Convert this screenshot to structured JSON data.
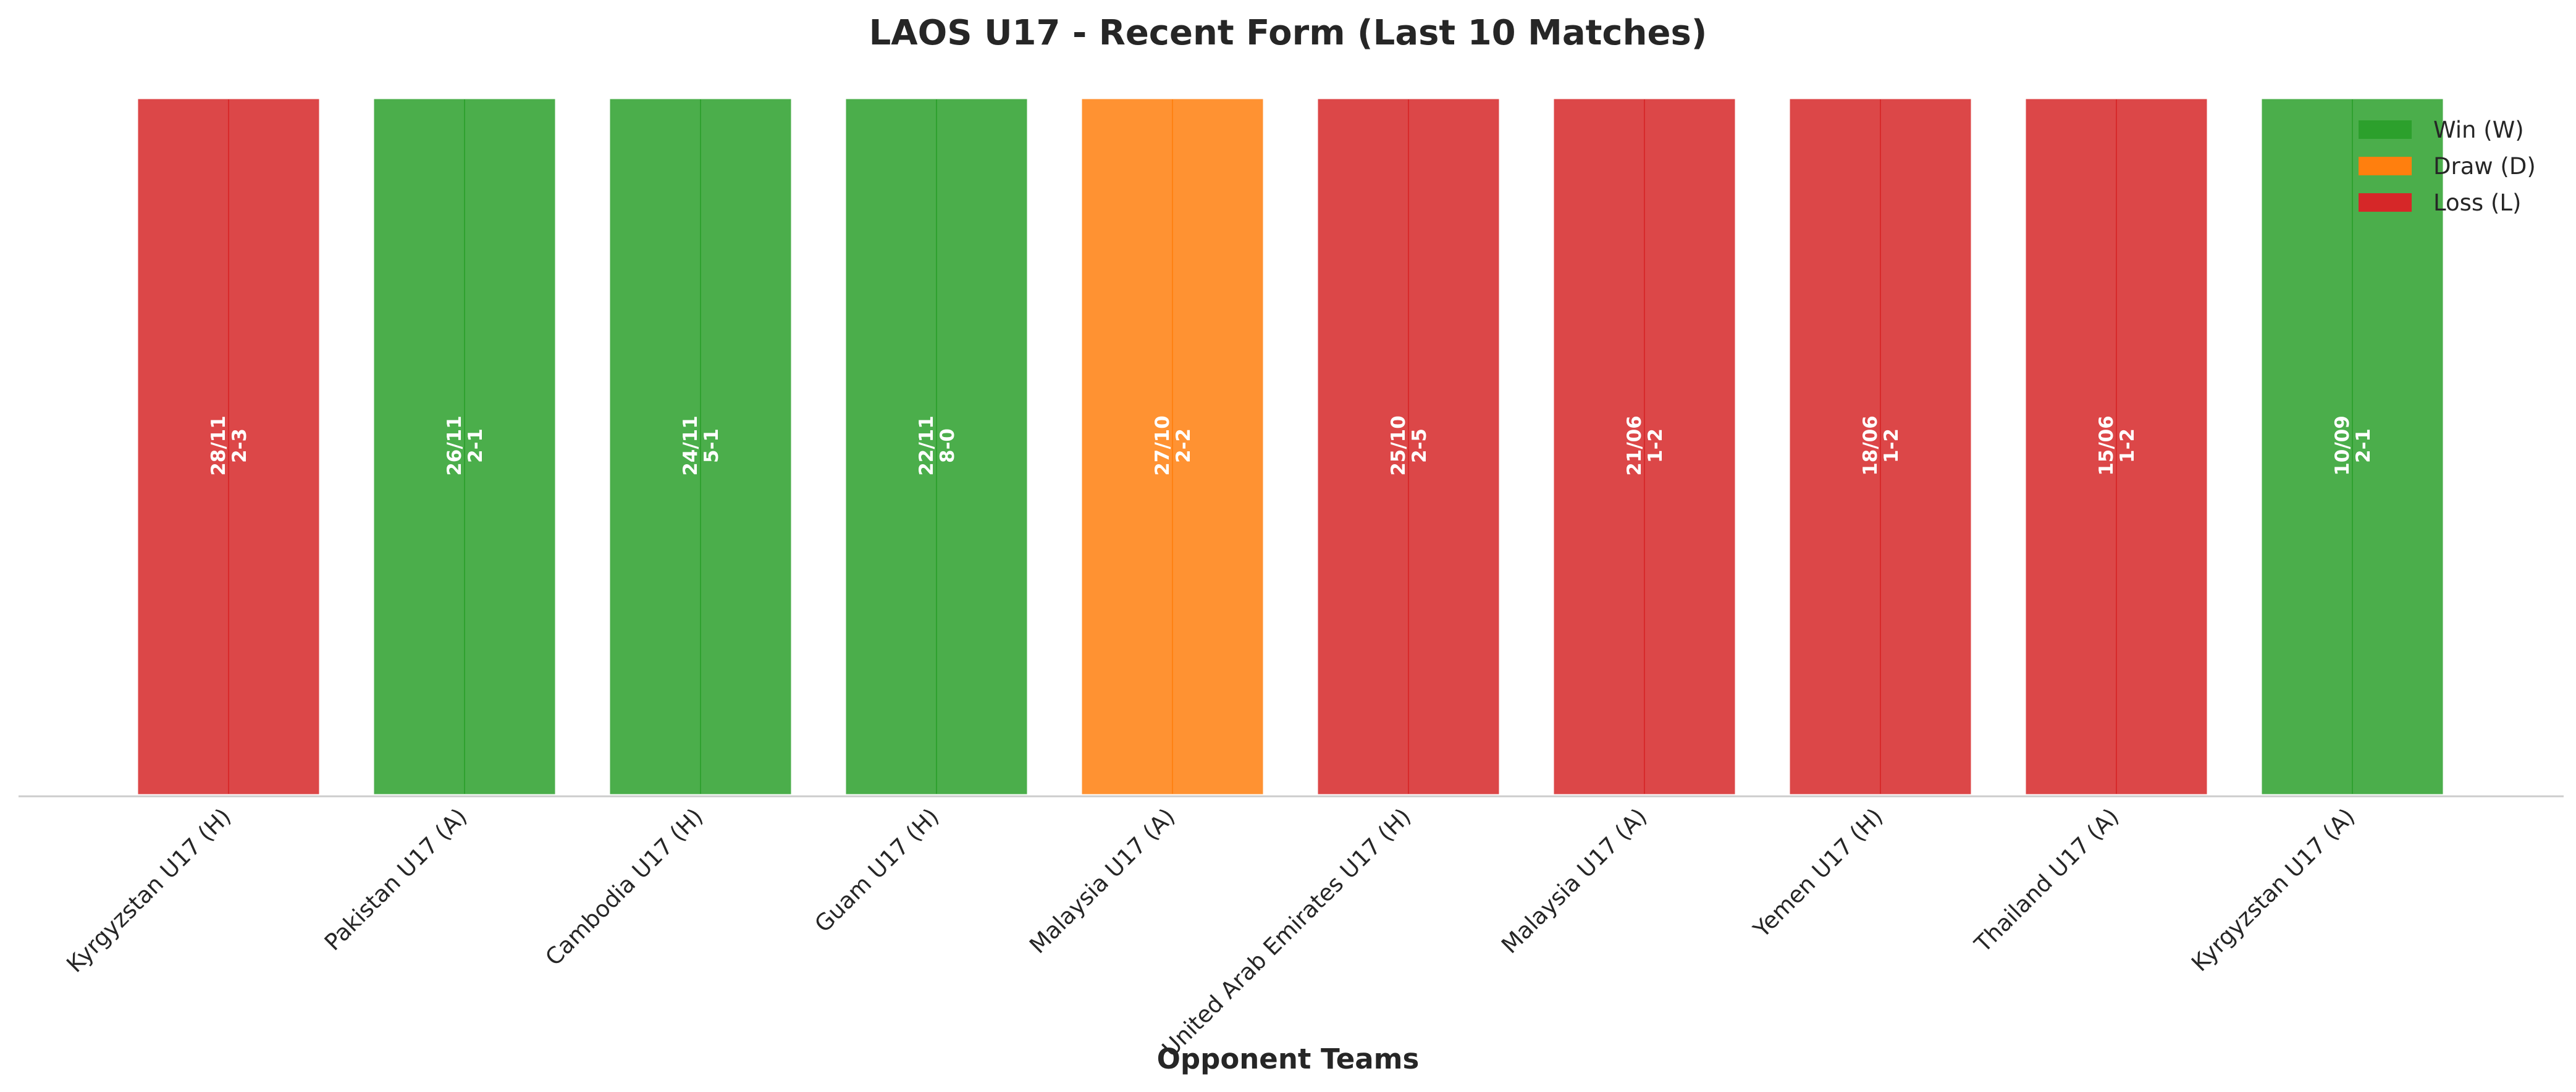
{
  "chart_data": {
    "type": "bar",
    "title": "LAOS U17 - Recent Form (Last 10 Matches)",
    "xlabel": "Opponent Teams",
    "ylabel": "",
    "categories": [
      "Kyrgyzstan U17 (H)",
      "Pakistan U17 (A)",
      "Cambodia U17 (H)",
      "Guam U17 (H)",
      "Malaysia U17 (A)",
      "United Arab Emirates U17 (H)",
      "Malaysia U17 (A)",
      "Yemen U17 (H)",
      "Thailand U17 (A)",
      "Kyrgyzstan U17 (A)"
    ],
    "values": [
      1,
      1,
      1,
      1,
      1,
      1,
      1,
      1,
      1,
      1
    ],
    "results": [
      "L",
      "W",
      "W",
      "W",
      "D",
      "L",
      "L",
      "L",
      "L",
      "W"
    ],
    "dates": [
      "28/11",
      "26/11",
      "24/11",
      "22/11",
      "27/10",
      "25/10",
      "21/06",
      "18/06",
      "15/06",
      "10/09"
    ],
    "scores": [
      "2-3",
      "2-1",
      "5-1",
      "8-0",
      "2-2",
      "2-5",
      "1-2",
      "1-2",
      "1-2",
      "2-1"
    ],
    "ylim": [
      0,
      1
    ],
    "grid": false,
    "legend_position": "top-right",
    "legend": [
      {
        "key": "W",
        "label": "Win (W)",
        "color": "#2ca02c"
      },
      {
        "key": "D",
        "label": "Draw (D)",
        "color": "#ff7f0e"
      },
      {
        "key": "L",
        "label": "Loss (L)",
        "color": "#d62728"
      }
    ]
  }
}
